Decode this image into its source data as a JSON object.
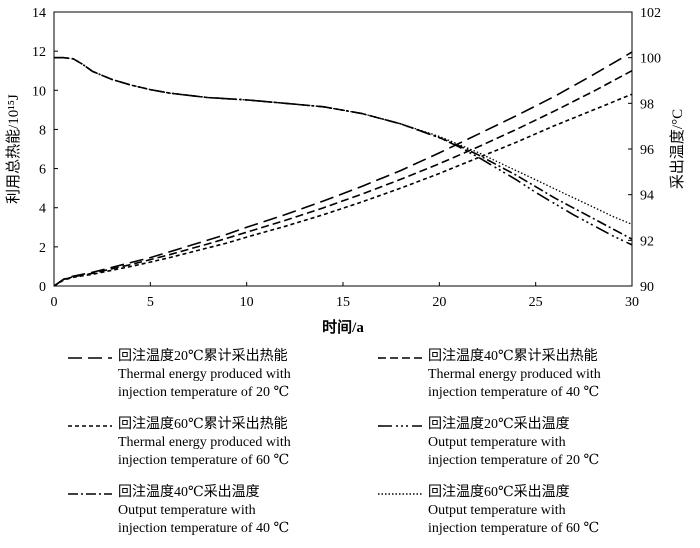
{
  "chart_data": {
    "type": "line",
    "title": "",
    "xlabel": "时间/a",
    "ylabel_left": "利用总热能/10¹⁵J",
    "ylabel_right": "采出温度/°C",
    "xlim": [
      0,
      30
    ],
    "ylim_left": [
      0,
      14
    ],
    "ylim_right": [
      90,
      102
    ],
    "xticks": [
      "0",
      "5",
      "10",
      "15",
      "20",
      "25",
      "30"
    ],
    "yticks_left": [
      "0",
      "2",
      "4",
      "6",
      "8",
      "10",
      "12",
      "14"
    ],
    "yticks_right": [
      "90",
      "92",
      "94",
      "96",
      "98",
      "100",
      "102"
    ],
    "grid": false,
    "legend_position": "bottom",
    "series": [
      {
        "name": "回注温度20℃累计采出热能",
        "name_en_1": "Thermal energy produced with",
        "name_en_2": "injection temperature of 20 ℃",
        "axis": "left",
        "color": "#000000",
        "dash": "14 6",
        "x": [
          0,
          0.5,
          1,
          2,
          3,
          4,
          5,
          6,
          7,
          8,
          9,
          10,
          12,
          14,
          16,
          18,
          20,
          22,
          24,
          26,
          28,
          30
        ],
        "y": [
          0,
          0.35,
          0.5,
          0.7,
          0.95,
          1.2,
          1.45,
          1.75,
          2.05,
          2.35,
          2.65,
          3.0,
          3.65,
          4.35,
          5.1,
          5.9,
          6.8,
          7.75,
          8.7,
          9.7,
          10.8,
          11.95
        ]
      },
      {
        "name": "回注温度40℃累计采出热能",
        "name_en_1": "Thermal energy produced with",
        "name_en_2": "injection temperature of 40 ℃",
        "axis": "left",
        "color": "#000000",
        "dash": "8 4",
        "x": [
          0,
          0.5,
          1,
          2,
          3,
          4,
          5,
          6,
          7,
          8,
          9,
          10,
          12,
          14,
          16,
          18,
          20,
          22,
          24,
          26,
          28,
          30
        ],
        "y": [
          0,
          0.33,
          0.47,
          0.65,
          0.88,
          1.1,
          1.35,
          1.6,
          1.88,
          2.15,
          2.45,
          2.75,
          3.35,
          4.0,
          4.7,
          5.45,
          6.25,
          7.1,
          8.0,
          8.95,
          9.95,
          11.0
        ]
      },
      {
        "name": "回注温度60℃累计采出热能",
        "name_en_1": "Thermal energy produced with",
        "name_en_2": "injection temperature of 60 ℃",
        "axis": "left",
        "color": "#000000",
        "dash": "4 3",
        "x": [
          0,
          0.5,
          1,
          2,
          3,
          4,
          5,
          6,
          7,
          8,
          9,
          10,
          12,
          14,
          16,
          18,
          20,
          22,
          24,
          26,
          28,
          30
        ],
        "y": [
          0,
          0.3,
          0.45,
          0.6,
          0.8,
          1.0,
          1.22,
          1.45,
          1.7,
          1.95,
          2.2,
          2.5,
          3.05,
          3.65,
          4.3,
          5.0,
          5.75,
          6.55,
          7.35,
          8.2,
          9.0,
          9.8
        ]
      },
      {
        "name": "回注温度20℃采出温度",
        "name_en_1": "Output temperature with",
        "name_en_2": "injection temperature of 20 ℃",
        "axis": "right",
        "color": "#000000",
        "dash": "14 4 2 3 2 3 2 4",
        "x": [
          0,
          0.5,
          1,
          1.5,
          2,
          3,
          4,
          5,
          6,
          8,
          10,
          12,
          14,
          16,
          18,
          20,
          21,
          22,
          23,
          24,
          25,
          26,
          27,
          28,
          29,
          30
        ],
        "y": [
          100.0,
          100.0,
          99.95,
          99.7,
          99.4,
          99.05,
          98.8,
          98.6,
          98.45,
          98.25,
          98.15,
          98.0,
          97.85,
          97.55,
          97.1,
          96.5,
          96.1,
          95.65,
          95.15,
          94.65,
          94.1,
          93.6,
          93.1,
          92.65,
          92.2,
          91.8
        ]
      },
      {
        "name": "回注温度40℃采出温度",
        "name_en_1": "Output temperature with",
        "name_en_2": "injection temperature of 40 ℃",
        "axis": "right",
        "color": "#000000",
        "dash": "10 3 2 3",
        "x": [
          0,
          0.5,
          1,
          1.5,
          2,
          3,
          4,
          5,
          6,
          8,
          10,
          12,
          14,
          16,
          18,
          20,
          21,
          22,
          23,
          24,
          25,
          26,
          27,
          28,
          29,
          30
        ],
        "y": [
          100.0,
          100.0,
          99.95,
          99.7,
          99.4,
          99.05,
          98.8,
          98.6,
          98.45,
          98.25,
          98.15,
          98.0,
          97.85,
          97.55,
          97.1,
          96.5,
          96.15,
          95.75,
          95.3,
          94.85,
          94.35,
          93.85,
          93.4,
          92.95,
          92.5,
          92.05
        ]
      },
      {
        "name": "回注温度60℃采出温度",
        "name_en_1": "Output temperature with",
        "name_en_2": "injection temperature of 60 ℃",
        "axis": "right",
        "color": "#000000",
        "dash": "1.5 2",
        "x": [
          0,
          0.5,
          1,
          1.5,
          2,
          3,
          4,
          5,
          6,
          8,
          10,
          12,
          14,
          16,
          18,
          20,
          21,
          22,
          23,
          24,
          25,
          26,
          27,
          28,
          29,
          30
        ],
        "y": [
          100.0,
          100.0,
          99.95,
          99.7,
          99.4,
          99.05,
          98.8,
          98.6,
          98.45,
          98.25,
          98.15,
          98.0,
          97.85,
          97.55,
          97.1,
          96.55,
          96.2,
          95.85,
          95.45,
          95.05,
          94.65,
          94.25,
          93.85,
          93.45,
          93.05,
          92.7
        ]
      }
    ]
  }
}
